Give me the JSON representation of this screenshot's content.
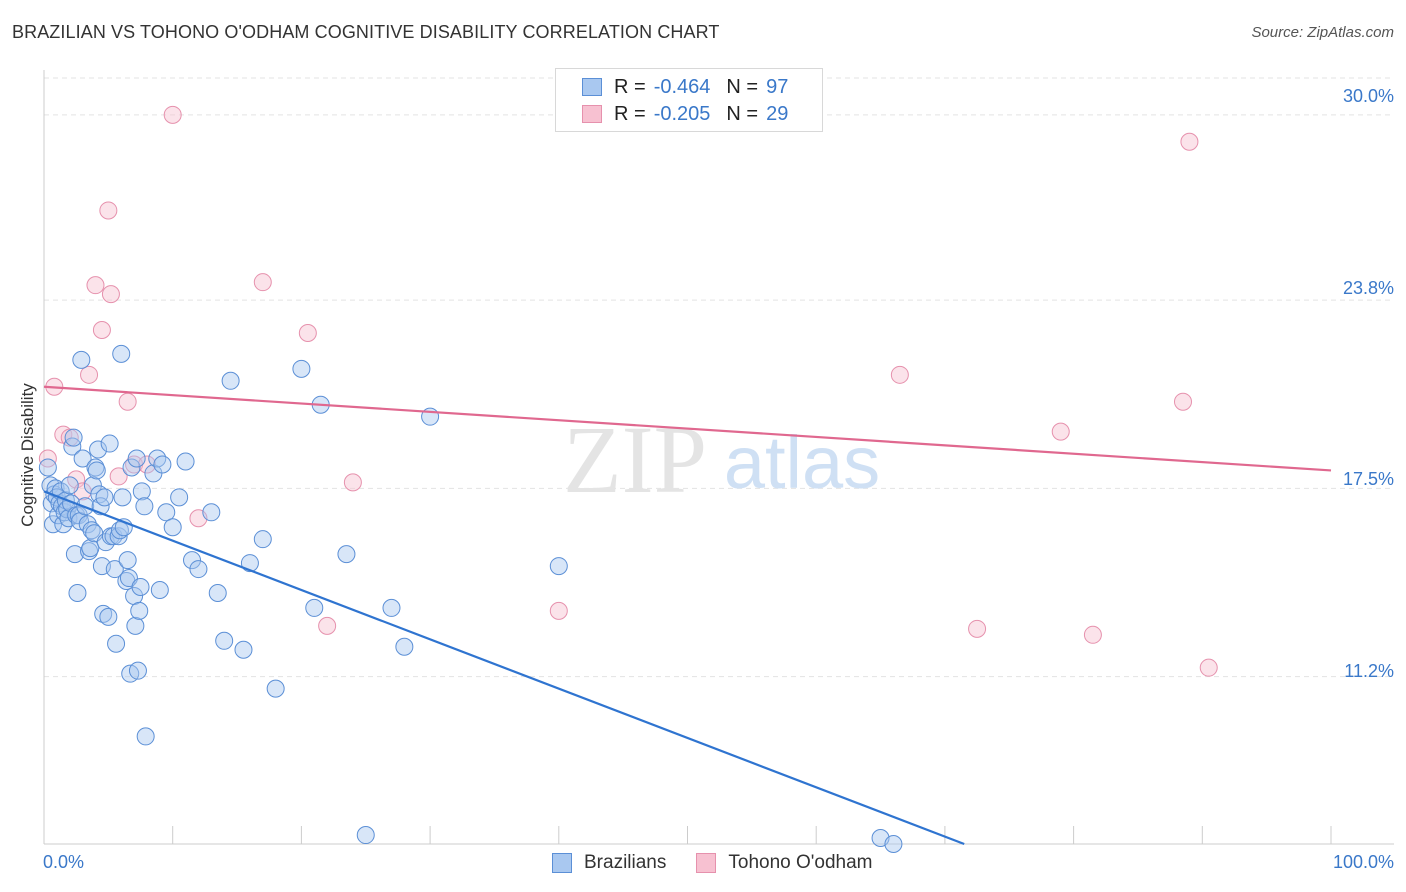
{
  "header": {
    "title": "BRAZILIAN VS TOHONO O'ODHAM COGNITIVE DISABILITY CORRELATION CHART",
    "source": "Source: ZipAtlas.com"
  },
  "watermark": {
    "zip": "ZIP",
    "atlas": "atlas"
  },
  "legend": {
    "rows": [
      {
        "r_label": "R =",
        "r_value": "-0.464",
        "n_label": "N =",
        "n_value": "97"
      },
      {
        "r_label": "R =",
        "r_value": "-0.205",
        "n_label": "N =",
        "n_value": "29"
      }
    ]
  },
  "bottom_legend": [
    "Brazilians",
    "Tohono O'odham"
  ],
  "colors": {
    "blue_fill": "#a9c8f0",
    "blue_stroke": "#5b8fd6",
    "blue_line": "#2f74d0",
    "pink_fill": "#f7c1d1",
    "pink_stroke": "#e691ad",
    "pink_line": "#e0688f",
    "axis_text": "#3a78c9",
    "grid": "#e3e3e3"
  },
  "chart_data": {
    "type": "scatter",
    "title": "BRAZILIAN VS TOHONO O'ODHAM COGNITIVE DISABILITY CORRELATION CHART",
    "xlabel": "",
    "ylabel": "Cognitive Disability",
    "xlim": [
      0,
      100
    ],
    "ylim": [
      5.6,
      31.5
    ],
    "x_tick_labels": [
      "0.0%",
      "100.0%"
    ],
    "y_ticks": [
      30.0,
      23.8,
      17.5,
      11.2
    ],
    "y_tick_labels": [
      "30.0%",
      "23.8%",
      "17.5%",
      "11.2%"
    ],
    "grid": true,
    "series": [
      {
        "name": "Brazilians",
        "r": -0.464,
        "n": 97,
        "trend": {
          "x": [
            0,
            71.5
          ],
          "y": [
            17.4,
            5.6
          ]
        },
        "points": [
          [
            0.3,
            18.2
          ],
          [
            0.5,
            17.6
          ],
          [
            0.6,
            17.0
          ],
          [
            0.7,
            16.3
          ],
          [
            0.8,
            17.3
          ],
          [
            0.9,
            17.5
          ],
          [
            1.0,
            17.2
          ],
          [
            1.1,
            16.6
          ],
          [
            1.2,
            17.0
          ],
          [
            1.3,
            17.4
          ],
          [
            1.4,
            16.9
          ],
          [
            1.5,
            16.3
          ],
          [
            1.6,
            16.7
          ],
          [
            1.7,
            17.1
          ],
          [
            1.8,
            16.8
          ],
          [
            1.9,
            16.5
          ],
          [
            2.0,
            17.6
          ],
          [
            2.1,
            17.0
          ],
          [
            2.2,
            18.9
          ],
          [
            2.3,
            19.2
          ],
          [
            2.4,
            15.3
          ],
          [
            2.5,
            16.6
          ],
          [
            2.6,
            14.0
          ],
          [
            2.7,
            16.6
          ],
          [
            2.8,
            16.4
          ],
          [
            2.9,
            21.8
          ],
          [
            3.0,
            18.5
          ],
          [
            3.2,
            16.9
          ],
          [
            3.4,
            16.3
          ],
          [
            3.5,
            15.4
          ],
          [
            3.6,
            15.5
          ],
          [
            3.7,
            16.1
          ],
          [
            3.8,
            17.6
          ],
          [
            3.9,
            16.0
          ],
          [
            4.0,
            18.2
          ],
          [
            4.1,
            18.1
          ],
          [
            4.2,
            18.8
          ],
          [
            4.3,
            17.3
          ],
          [
            4.4,
            16.9
          ],
          [
            4.5,
            14.9
          ],
          [
            4.6,
            13.3
          ],
          [
            4.7,
            17.2
          ],
          [
            4.8,
            15.7
          ],
          [
            5.0,
            13.2
          ],
          [
            5.1,
            19.0
          ],
          [
            5.2,
            15.9
          ],
          [
            5.4,
            15.9
          ],
          [
            5.5,
            14.8
          ],
          [
            5.6,
            12.3
          ],
          [
            5.8,
            15.9
          ],
          [
            5.9,
            16.1
          ],
          [
            6.0,
            22.0
          ],
          [
            6.1,
            17.2
          ],
          [
            6.2,
            16.2
          ],
          [
            6.4,
            14.4
          ],
          [
            6.5,
            15.1
          ],
          [
            6.6,
            14.5
          ],
          [
            6.7,
            11.3
          ],
          [
            6.8,
            18.2
          ],
          [
            7.0,
            13.9
          ],
          [
            7.1,
            12.9
          ],
          [
            7.2,
            18.5
          ],
          [
            7.3,
            11.4
          ],
          [
            7.4,
            13.4
          ],
          [
            7.5,
            14.2
          ],
          [
            7.6,
            17.4
          ],
          [
            7.8,
            16.9
          ],
          [
            7.9,
            9.2
          ],
          [
            8.5,
            18.0
          ],
          [
            8.8,
            18.5
          ],
          [
            9.0,
            14.1
          ],
          [
            9.2,
            18.3
          ],
          [
            9.5,
            16.7
          ],
          [
            10.0,
            16.2
          ],
          [
            10.5,
            17.2
          ],
          [
            11.0,
            18.4
          ],
          [
            11.5,
            15.1
          ],
          [
            12.0,
            14.8
          ],
          [
            13.0,
            16.7
          ],
          [
            13.5,
            14.0
          ],
          [
            14.0,
            12.4
          ],
          [
            14.5,
            21.1
          ],
          [
            15.5,
            12.1
          ],
          [
            16.0,
            15.0
          ],
          [
            17.0,
            15.8
          ],
          [
            18.0,
            10.8
          ],
          [
            20.0,
            21.5
          ],
          [
            21.0,
            13.5
          ],
          [
            21.5,
            20.3
          ],
          [
            23.5,
            15.3
          ],
          [
            25.0,
            5.9
          ],
          [
            27.0,
            13.5
          ],
          [
            28.0,
            12.2
          ],
          [
            30.0,
            19.9
          ],
          [
            40.0,
            14.9
          ],
          [
            65.0,
            5.8
          ],
          [
            66.0,
            5.6
          ]
        ]
      },
      {
        "name": "Tohono O'odham",
        "r": -0.205,
        "n": 29,
        "trend": {
          "x": [
            0,
            100
          ],
          "y": [
            20.9,
            18.1
          ]
        },
        "points": [
          [
            0.3,
            18.5
          ],
          [
            0.8,
            20.9
          ],
          [
            1.5,
            19.3
          ],
          [
            2.0,
            19.2
          ],
          [
            2.5,
            17.8
          ],
          [
            3.0,
            17.4
          ],
          [
            3.5,
            21.3
          ],
          [
            4.0,
            24.3
          ],
          [
            4.5,
            22.8
          ],
          [
            5.0,
            26.8
          ],
          [
            5.2,
            24.0
          ],
          [
            5.8,
            17.9
          ],
          [
            6.5,
            20.4
          ],
          [
            7.0,
            18.3
          ],
          [
            8.0,
            18.3
          ],
          [
            10.0,
            30.0
          ],
          [
            12.0,
            16.5
          ],
          [
            17.0,
            24.4
          ],
          [
            20.5,
            22.7
          ],
          [
            22.0,
            12.9
          ],
          [
            24.0,
            17.7
          ],
          [
            40.0,
            13.4
          ],
          [
            66.5,
            21.3
          ],
          [
            72.5,
            12.8
          ],
          [
            79.0,
            19.4
          ],
          [
            81.5,
            12.6
          ],
          [
            88.5,
            20.4
          ],
          [
            89.0,
            29.1
          ],
          [
            90.5,
            11.5
          ]
        ]
      }
    ]
  }
}
